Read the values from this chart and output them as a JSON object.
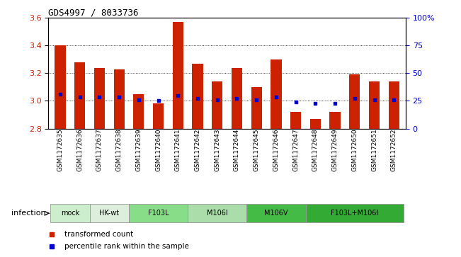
{
  "title": "GDS4997 / 8033736",
  "samples": [
    "GSM1172635",
    "GSM1172636",
    "GSM1172637",
    "GSM1172638",
    "GSM1172639",
    "GSM1172640",
    "GSM1172641",
    "GSM1172642",
    "GSM1172643",
    "GSM1172644",
    "GSM1172645",
    "GSM1172646",
    "GSM1172647",
    "GSM1172648",
    "GSM1172649",
    "GSM1172650",
    "GSM1172651",
    "GSM1172652"
  ],
  "bar_values": [
    3.4,
    3.28,
    3.24,
    3.23,
    3.05,
    2.98,
    3.57,
    3.27,
    3.14,
    3.24,
    3.1,
    3.3,
    2.92,
    2.87,
    2.92,
    3.19,
    3.14,
    3.14
  ],
  "dot_values": [
    3.05,
    3.03,
    3.03,
    3.03,
    3.01,
    3.0,
    3.04,
    3.02,
    3.01,
    3.02,
    3.01,
    3.03,
    2.99,
    2.98,
    2.98,
    3.02,
    3.01,
    3.01
  ],
  "ylim": [
    2.8,
    3.6
  ],
  "yticks_left": [
    2.8,
    3.0,
    3.2,
    3.4,
    3.6
  ],
  "yticks_right": [
    0,
    25,
    50,
    75,
    100
  ],
  "ytick_labels_right": [
    "0",
    "25",
    "50",
    "75",
    "100%"
  ],
  "bar_color": "#cc2200",
  "dot_color": "#0000cc",
  "bar_baseline": 2.8,
  "groups": [
    {
      "label": "mock",
      "start": 0,
      "end": 2,
      "color": "#cceecc"
    },
    {
      "label": "HK-wt",
      "start": 2,
      "end": 4,
      "color": "#ddeedd"
    },
    {
      "label": "F103L",
      "start": 4,
      "end": 7,
      "color": "#88dd88"
    },
    {
      "label": "M106I",
      "start": 7,
      "end": 10,
      "color": "#aaddaa"
    },
    {
      "label": "M106V",
      "start": 10,
      "end": 13,
      "color": "#44bb44"
    },
    {
      "label": "F103L+M106I",
      "start": 13,
      "end": 18,
      "color": "#33aa33"
    }
  ],
  "xlabel": "infection",
  "legend_items": [
    {
      "color": "#cc2200",
      "label": "transformed count"
    },
    {
      "color": "#0000cc",
      "label": "percentile rank within the sample"
    }
  ],
  "grid_color": "#000000",
  "tick_label_color_left": "#cc2200",
  "tick_label_color_right": "#0000cc",
  "bar_width": 0.55,
  "background_color": "#ffffff"
}
